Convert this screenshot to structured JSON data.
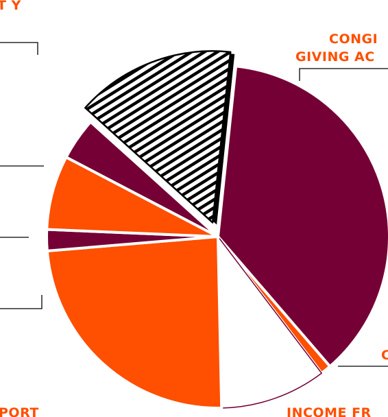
{
  "colors": {
    "maroon": "#750035",
    "orange": "#ff4f00",
    "white": "#ffffff",
    "black": "#000000"
  },
  "chart_data": {
    "type": "pie",
    "note_partial": true,
    "slices": [
      {
        "name": "CONGREGATIONAL GIVING ACCOUNTS",
        "label_lines": [
          "CONGI",
          "GIVING AC"
        ],
        "value": 37.0,
        "fill": "maroon",
        "exploded": false
      },
      {
        "name": "",
        "value": 1.0,
        "fill": "orange",
        "exploded": false
      },
      {
        "name": "INCOME FR",
        "label_lines": [
          "INCOME FR"
        ],
        "value": 10.0,
        "fill": "white",
        "exploded": false
      },
      {
        "name": "SUPPORT",
        "label_lines": [
          "PORT"
        ],
        "value": 24.0,
        "fill": "orange",
        "exploded": false
      },
      {
        "name": "",
        "value": 2.0,
        "fill": "maroon",
        "exploded": false
      },
      {
        "name": "",
        "value": 7.0,
        "fill": "orange",
        "exploded": false
      },
      {
        "name": "",
        "value": 4.0,
        "fill": "maroon",
        "exploded": false
      },
      {
        "name": "",
        "label_lines": [
          "TY"
        ],
        "value": 15.0,
        "fill": "hatched",
        "exploded": true
      }
    ],
    "labels": {
      "top_left": "T Y",
      "top_right_line1": "CONGI",
      "top_right_line2": "GIVING AC",
      "bottom_left": "PORT",
      "bottom_right": "INCOME FR",
      "right_partial": "C"
    }
  }
}
